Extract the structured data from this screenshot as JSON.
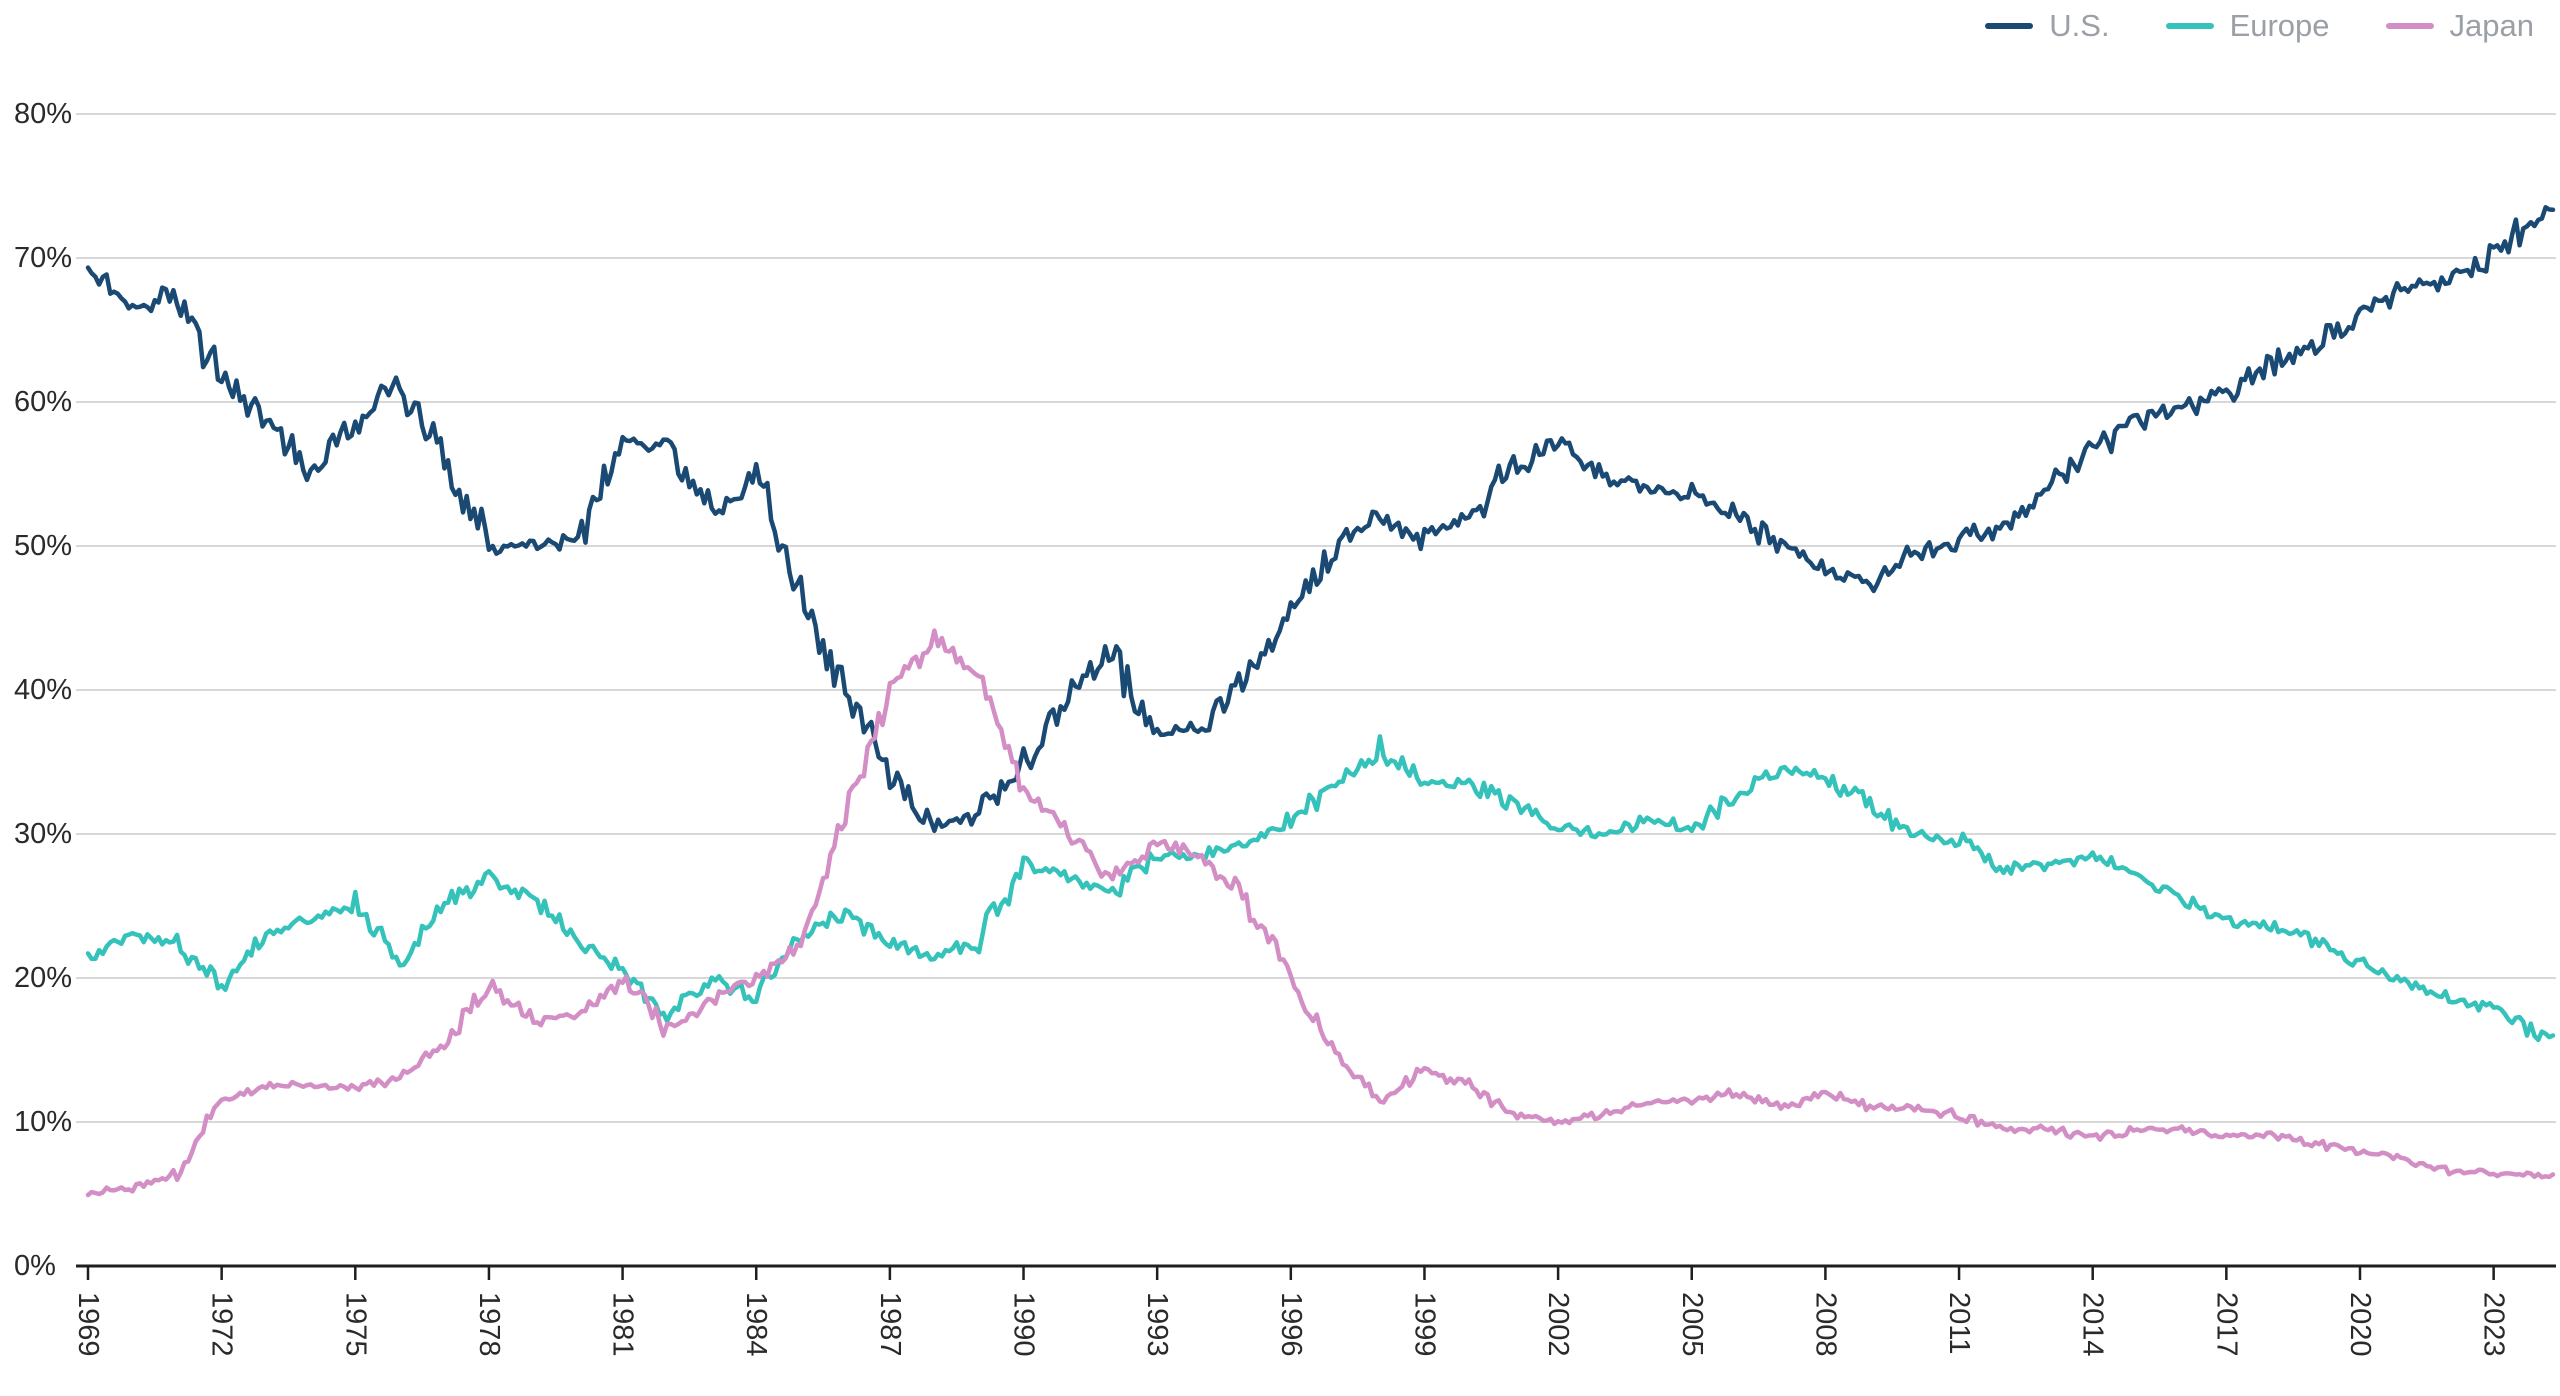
{
  "colors": {
    "background": "#ffffff",
    "grid": "#d8d8d8",
    "axis": "#1e1e1e",
    "tick_label": "#2a2a2a",
    "legend_label": "#9aa0a6",
    "us": "#1a4a73",
    "europe": "#35c2bb",
    "japan": "#d38fc5"
  },
  "chart_data": {
    "type": "line",
    "title": "",
    "xlabel": "",
    "ylabel": "",
    "ylim": [
      0,
      80
    ],
    "x_range": [
      1969,
      2024.4
    ],
    "grid": "horizontal",
    "legend_position": "top-right",
    "y_ticks": [
      0,
      10,
      20,
      30,
      40,
      50,
      60,
      70,
      80
    ],
    "y_tick_labels": [
      "0%",
      "10%",
      "20%",
      "30%",
      "40%",
      "50%",
      "60%",
      "70%",
      "80%"
    ],
    "x_tick_labels": [
      "1969",
      "1972",
      "1975",
      "1978",
      "1981",
      "1984",
      "1987",
      "1990",
      "1993",
      "1996",
      "1999",
      "2002",
      "2005",
      "2008",
      "2011",
      "2014",
      "2017",
      "2020",
      "2023"
    ],
    "resolution": "annual estimates read from a monthly plotted line",
    "years": [
      1969,
      1970,
      1971,
      1972,
      1973,
      1974,
      1975,
      1976,
      1977,
      1978,
      1979,
      1980,
      1981,
      1982,
      1983,
      1984,
      1985,
      1986,
      1987,
      1988,
      1989,
      1990,
      1991,
      1992,
      1993,
      1994,
      1995,
      1996,
      1997,
      1998,
      1999,
      2000,
      2001,
      2002,
      2003,
      2004,
      2005,
      2006,
      2007,
      2008,
      2009,
      2010,
      2011,
      2012,
      2013,
      2014,
      2015,
      2016,
      2017,
      2018,
      2019,
      2020,
      2021,
      2022,
      2023,
      2024
    ],
    "series": [
      {
        "name": "U.S.",
        "color": "#1a4a73",
        "values": [
          69.5,
          66.5,
          67.5,
          61.5,
          59.0,
          55.0,
          58.5,
          61.5,
          55.5,
          50.0,
          50.0,
          50.5,
          57.0,
          57.0,
          52.5,
          55.0,
          46.5,
          40.0,
          34.0,
          30.5,
          31.5,
          34.5,
          40.0,
          42.5,
          37.0,
          37.5,
          41.0,
          45.0,
          50.0,
          52.0,
          50.5,
          52.0,
          55.5,
          57.0,
          55.0,
          54.0,
          53.5,
          52.0,
          50.0,
          48.5,
          47.5,
          49.5,
          50.5,
          51.5,
          54.0,
          56.5,
          58.5,
          59.5,
          60.5,
          62.5,
          64.0,
          66.0,
          68.0,
          68.5,
          70.5,
          73.0
        ]
      },
      {
        "name": "Europe",
        "color": "#35c2bb",
        "values": [
          21.5,
          23.0,
          22.5,
          19.5,
          23.0,
          24.0,
          25.0,
          21.0,
          25.0,
          27.0,
          25.5,
          22.5,
          20.5,
          17.5,
          20.0,
          18.5,
          23.0,
          24.5,
          22.5,
          21.5,
          22.5,
          28.0,
          27.0,
          26.0,
          28.5,
          28.5,
          29.5,
          31.0,
          33.5,
          36.0,
          33.5,
          33.5,
          32.0,
          30.5,
          30.0,
          31.0,
          30.5,
          32.5,
          34.5,
          34.0,
          32.0,
          30.0,
          29.5,
          27.5,
          28.0,
          28.5,
          27.0,
          25.5,
          24.0,
          23.5,
          22.5,
          21.0,
          20.0,
          18.5,
          18.0,
          16.0
        ]
      },
      {
        "name": "Japan",
        "color": "#d38fc5",
        "values": [
          5.0,
          5.5,
          6.5,
          11.5,
          12.5,
          12.5,
          12.5,
          13.0,
          15.5,
          19.5,
          17.0,
          17.5,
          20.0,
          16.5,
          18.5,
          20.0,
          22.5,
          31.0,
          40.0,
          43.5,
          41.0,
          33.0,
          30.0,
          27.0,
          29.5,
          28.5,
          25.5,
          20.0,
          14.5,
          11.5,
          13.5,
          12.5,
          10.5,
          10.0,
          10.5,
          11.5,
          11.5,
          12.0,
          11.0,
          12.0,
          11.0,
          11.0,
          10.5,
          9.5,
          9.5,
          9.0,
          9.5,
          9.5,
          9.0,
          9.0,
          8.5,
          8.0,
          7.5,
          6.5,
          6.5,
          6.2
        ]
      }
    ]
  },
  "legend": {
    "items": [
      {
        "label": "U.S."
      },
      {
        "label": "Europe"
      },
      {
        "label": "Japan"
      }
    ]
  }
}
